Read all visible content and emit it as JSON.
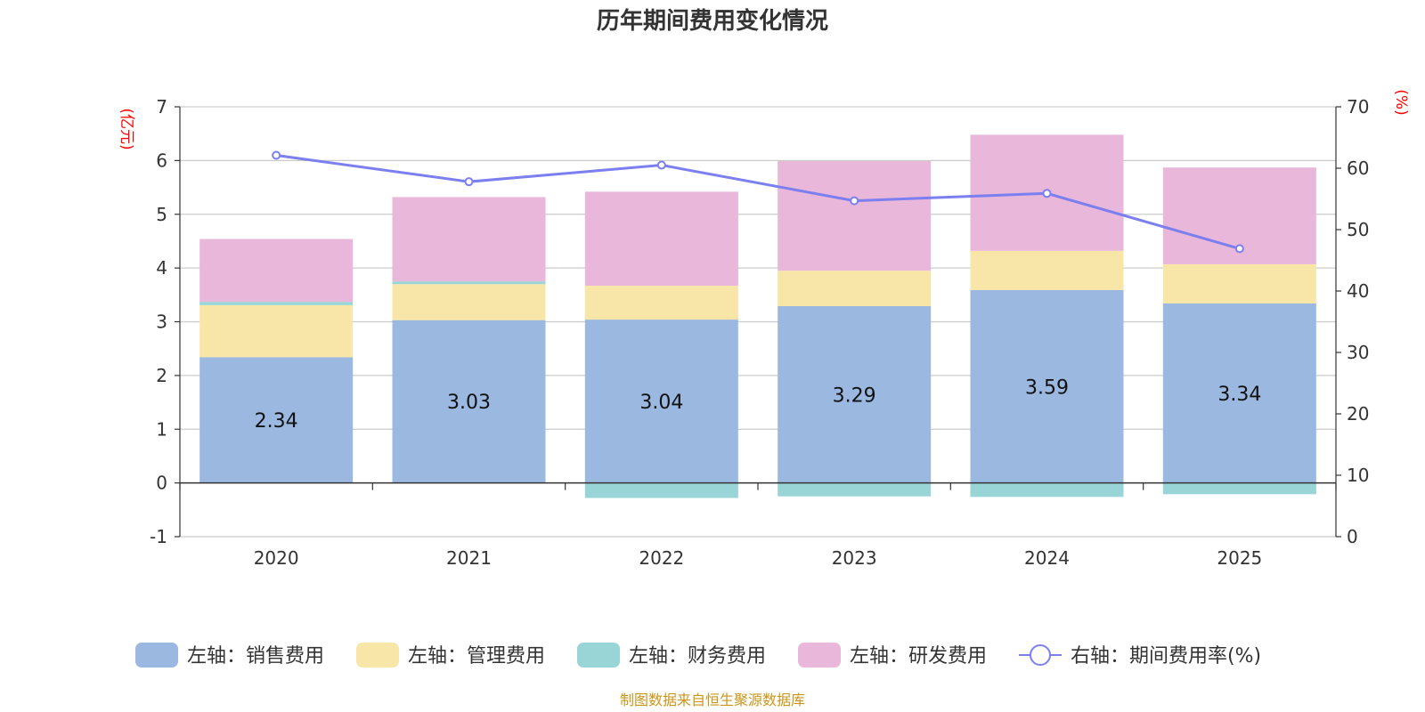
{
  "chart_data": {
    "type": "bar",
    "title": "历年期间费用变化情况",
    "source": "制图数据来自恒生聚源数据库",
    "categories": [
      "2020",
      "2021",
      "2022",
      "2023",
      "2024",
      "2025"
    ],
    "left_axis": {
      "unit": "(亿元)",
      "ylim": [
        -1,
        7
      ],
      "ticks": [
        "-1",
        "0",
        "1",
        "2",
        "3",
        "4",
        "5",
        "6",
        "7"
      ]
    },
    "right_axis": {
      "unit": "(%)",
      "ylim": [
        0,
        70
      ],
      "ticks": [
        "0",
        "10",
        "20",
        "30",
        "40",
        "50",
        "60",
        "70"
      ]
    },
    "series": [
      {
        "name": "左轴：销售费用",
        "type": "bar",
        "axis": "left",
        "color": "#9bb8e1",
        "values": [
          2.34,
          3.03,
          3.04,
          3.29,
          3.59,
          3.34
        ],
        "labels": [
          "2.34",
          "3.03",
          "3.04",
          "3.29",
          "3.59",
          "3.34"
        ]
      },
      {
        "name": "左轴：管理费用",
        "type": "bar",
        "axis": "left",
        "color": "#f7e6a8",
        "values": [
          0.97,
          0.67,
          0.63,
          0.66,
          0.73,
          0.73
        ]
      },
      {
        "name": "左轴：财务费用",
        "type": "bar",
        "axis": "left",
        "color": "#99d5d6",
        "values": [
          0.06,
          0.05,
          -0.28,
          -0.25,
          -0.26,
          -0.21
        ]
      },
      {
        "name": "左轴：研发费用",
        "type": "bar",
        "axis": "left",
        "color": "#e8b7d9",
        "values": [
          1.17,
          1.57,
          1.75,
          2.04,
          2.16,
          1.8
        ]
      },
      {
        "name": "右轴：期间费用率(%)",
        "type": "line",
        "axis": "right",
        "color": "#7b7ff0",
        "values": [
          62.1,
          57.8,
          60.5,
          54.7,
          55.9,
          46.9
        ]
      }
    ]
  }
}
